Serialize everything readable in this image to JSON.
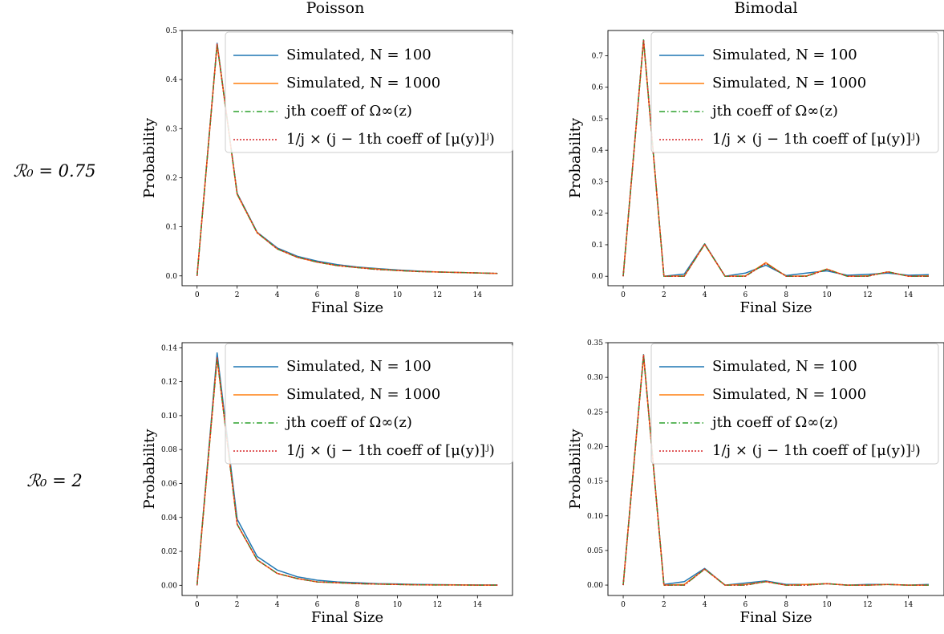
{
  "col_titles": [
    "Poisson",
    "Bimodal"
  ],
  "row_labels": [
    "ℛ₀ = 0.75",
    "ℛ₀ = 2"
  ],
  "legend": [
    {
      "label": "Simulated, N = 100",
      "color": "#1f77b4",
      "dash": "solid"
    },
    {
      "label": "Simulated, N = 1000",
      "color": "#ff7f0e",
      "dash": "solid"
    },
    {
      "label": "jth coeff of Ω∞(z)",
      "color": "#2ca02c",
      "dash": "dashdot"
    },
    {
      "label": "1/j × (j − 1th coeff of [μ(y)]ʲ)",
      "color": "#d62728",
      "dash": "dotted"
    }
  ],
  "chart_data": [
    {
      "type": "line",
      "title": "Poisson",
      "row_label": "ℛ₀ = 0.75",
      "xlabel": "Final Size",
      "ylabel": "Probability",
      "xlim": [
        -0.75,
        15.75
      ],
      "ylim": [
        -0.02,
        0.5
      ],
      "xticks": [
        0,
        2,
        4,
        6,
        8,
        10,
        12,
        14
      ],
      "yticks": [
        0.0,
        0.1,
        0.2,
        0.3,
        0.4,
        0.5
      ],
      "ytick_labels": [
        "0.0",
        "0.1",
        "0.2",
        "0.3",
        "0.4",
        "0.5"
      ],
      "x": [
        0,
        1,
        2,
        3,
        4,
        5,
        6,
        7,
        8,
        9,
        10,
        11,
        12,
        13,
        14,
        15
      ],
      "series": [
        {
          "name": "Simulated, N = 100",
          "values": [
            0,
            0.474,
            0.168,
            0.089,
            0.057,
            0.04,
            0.03,
            0.023,
            0.018,
            0.015,
            0.012,
            0.01,
            0.008,
            0.007,
            0.006,
            0.005
          ]
        },
        {
          "name": "Simulated, N = 1000",
          "values": [
            0,
            0.472,
            0.166,
            0.088,
            0.055,
            0.038,
            0.028,
            0.021,
            0.017,
            0.014,
            0.011,
            0.009,
            0.008,
            0.007,
            0.006,
            0.005
          ]
        },
        {
          "name": "jth coeff of Ω∞(z)",
          "values": [
            0,
            0.472,
            0.167,
            0.088,
            0.055,
            0.038,
            0.028,
            0.021,
            0.017,
            0.013,
            0.011,
            0.009,
            0.008,
            0.007,
            0.006,
            0.005
          ]
        },
        {
          "name": "1/j × (j − 1th coeff of [μ(y)]ʲ)",
          "values": [
            0,
            0.472,
            0.167,
            0.088,
            0.055,
            0.038,
            0.028,
            0.021,
            0.017,
            0.013,
            0.011,
            0.009,
            0.008,
            0.007,
            0.006,
            0.005
          ]
        }
      ]
    },
    {
      "type": "line",
      "title": "Bimodal",
      "row_label": "ℛ₀ = 0.75",
      "xlabel": "Final Size",
      "ylabel": "Probability",
      "xlim": [
        -0.75,
        15.75
      ],
      "ylim": [
        -0.03,
        0.78
      ],
      "xticks": [
        0,
        2,
        4,
        6,
        8,
        10,
        12,
        14
      ],
      "yticks": [
        0.0,
        0.1,
        0.2,
        0.3,
        0.4,
        0.5,
        0.6,
        0.7
      ],
      "ytick_labels": [
        "0.0",
        "0.1",
        "0.2",
        "0.3",
        "0.4",
        "0.5",
        "0.6",
        "0.7"
      ],
      "x": [
        0,
        1,
        2,
        3,
        4,
        5,
        6,
        7,
        8,
        9,
        10,
        11,
        12,
        13,
        14,
        15
      ],
      "series": [
        {
          "name": "Simulated, N = 100",
          "values": [
            0,
            0.75,
            0,
            0.007,
            0.103,
            0,
            0.01,
            0.035,
            0.002,
            0.01,
            0.017,
            0.003,
            0.006,
            0.01,
            0.003,
            0.005
          ]
        },
        {
          "name": "Simulated, N = 1000",
          "values": [
            0,
            0.748,
            0,
            0.001,
            0.101,
            0,
            0.001,
            0.043,
            0,
            0.001,
            0.023,
            0,
            0.001,
            0.014,
            0,
            0.001
          ]
        },
        {
          "name": "jth coeff of Ω∞(z)",
          "values": [
            0,
            0.75,
            0,
            0,
            0.102,
            0,
            0,
            0.041,
            0,
            0,
            0.022,
            0,
            0,
            0.014,
            0,
            0
          ]
        },
        {
          "name": "1/j × (j − 1th coeff of [μ(y)]ʲ)",
          "values": [
            0,
            0.75,
            0,
            0,
            0.102,
            0,
            0,
            0.041,
            0,
            0,
            0.022,
            0,
            0,
            0.014,
            0,
            0
          ]
        }
      ]
    },
    {
      "type": "line",
      "title": "Poisson",
      "row_label": "ℛ₀ = 2",
      "xlabel": "Final Size",
      "ylabel": "Probability",
      "xlim": [
        -0.75,
        15.75
      ],
      "ylim": [
        -0.006,
        0.143
      ],
      "xticks": [
        0,
        2,
        4,
        6,
        8,
        10,
        12,
        14
      ],
      "yticks": [
        0.0,
        0.02,
        0.04,
        0.06,
        0.08,
        0.1,
        0.12,
        0.14
      ],
      "ytick_labels": [
        "0.00",
        "0.02",
        "0.04",
        "0.06",
        "0.08",
        "0.10",
        "0.12",
        "0.14"
      ],
      "x": [
        0,
        1,
        2,
        3,
        4,
        5,
        6,
        7,
        8,
        9,
        10,
        11,
        12,
        13,
        14,
        15
      ],
      "series": [
        {
          "name": "Simulated, N = 100",
          "values": [
            0,
            0.137,
            0.039,
            0.017,
            0.009,
            0.005,
            0.003,
            0.002,
            0.0015,
            0.001,
            0.0008,
            0.0005,
            0.0004,
            0.0003,
            0.0002,
            0.0002
          ]
        },
        {
          "name": "Simulated, N = 1000",
          "values": [
            0,
            0.134,
            0.036,
            0.015,
            0.007,
            0.004,
            0.002,
            0.0015,
            0.001,
            0.0007,
            0.0005,
            0.0003,
            0.0002,
            0.0002,
            0.0001,
            0.0001
          ]
        },
        {
          "name": "jth coeff of Ω∞(z)",
          "values": [
            0,
            0.134,
            0.036,
            0.015,
            0.007,
            0.004,
            0.002,
            0.0015,
            0.001,
            0.0007,
            0.0005,
            0.0003,
            0.0002,
            0.0002,
            0.0001,
            0.0001
          ]
        },
        {
          "name": "1/j × (j − 1th coeff of [μ(y)]ʲ)",
          "values": [
            0,
            0.134,
            0.036,
            0.015,
            0.007,
            0.004,
            0.002,
            0.0015,
            0.001,
            0.0007,
            0.0005,
            0.0003,
            0.0002,
            0.0002,
            0.0001,
            0.0001
          ]
        }
      ]
    },
    {
      "type": "line",
      "title": "Bimodal",
      "row_label": "ℛ₀ = 2",
      "xlabel": "Final Size",
      "ylabel": "Probability",
      "xlim": [
        -0.75,
        15.75
      ],
      "ylim": [
        -0.015,
        0.35
      ],
      "xticks": [
        0,
        2,
        4,
        6,
        8,
        10,
        12,
        14
      ],
      "yticks": [
        0.0,
        0.05,
        0.1,
        0.15,
        0.2,
        0.25,
        0.3,
        0.35
      ],
      "ytick_labels": [
        "0.00",
        "0.05",
        "0.10",
        "0.15",
        "0.20",
        "0.25",
        "0.30",
        "0.35"
      ],
      "x": [
        0,
        1,
        2,
        3,
        4,
        5,
        6,
        7,
        8,
        9,
        10,
        11,
        12,
        13,
        14,
        15
      ],
      "series": [
        {
          "name": "Simulated, N = 100",
          "values": [
            0,
            0.333,
            0.001,
            0.005,
            0.024,
            0,
            0.003,
            0.006,
            0.001,
            0.001,
            0.002,
            0,
            0.001,
            0.001,
            0,
            0.001
          ]
        },
        {
          "name": "Simulated, N = 1000",
          "values": [
            0,
            0.332,
            0,
            0.001,
            0.023,
            0,
            0.001,
            0.005,
            0,
            0.001,
            0.002,
            0,
            0,
            0.001,
            0,
            0
          ]
        },
        {
          "name": "jth coeff of Ω∞(z)",
          "values": [
            0,
            0.332,
            0,
            0,
            0.023,
            0,
            0,
            0.005,
            0,
            0,
            0.002,
            0,
            0,
            0.001,
            0,
            0
          ]
        },
        {
          "name": "1/j × (j − 1th coeff of [μ(y)]ʲ)",
          "values": [
            0,
            0.332,
            0,
            0,
            0.023,
            0,
            0,
            0.005,
            0,
            0,
            0.002,
            0,
            0,
            0.001,
            0,
            0
          ]
        }
      ]
    }
  ]
}
